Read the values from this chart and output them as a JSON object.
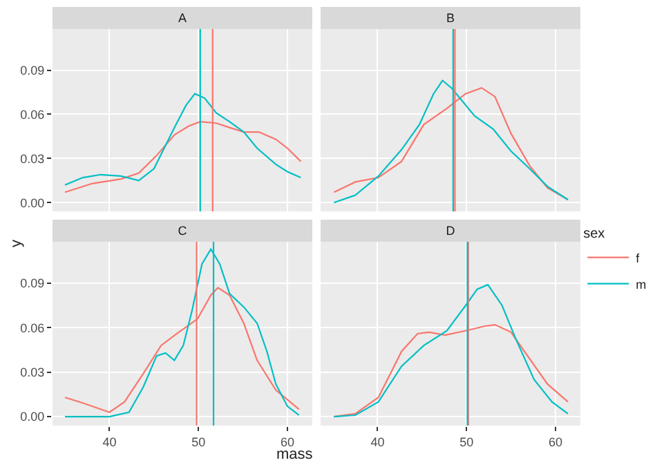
{
  "chart_data": [
    {
      "type": "line",
      "title": "A",
      "xlim": [
        33.6,
        62.8
      ],
      "ylim": [
        -0.006,
        0.118
      ],
      "xticks": [
        40,
        50,
        60
      ],
      "yticks": [
        {
          "value": 0,
          "label": "0.00"
        },
        0.03,
        0.06,
        0.09
      ],
      "grid": true,
      "tick_labels": "y",
      "series": [
        {
          "color": "#f8766d",
          "x": [
            35,
            38.1,
            41.3,
            43.3,
            45.3,
            47.3,
            48.9,
            50.2,
            52,
            53.5,
            55.1,
            56.8,
            58.7,
            60,
            61.5
          ],
          "values": [
            0.007,
            0.013,
            0.016,
            0.02,
            0.032,
            0.046,
            0.052,
            0.055,
            0.054,
            0.051,
            0.048,
            0.048,
            0.043,
            0.037,
            0.028
          ]
        },
        {
          "color": "#00bfc4",
          "x": [
            35,
            37,
            39,
            41.3,
            43.3,
            45,
            47.3,
            48.6,
            49.6,
            50.7,
            52,
            53.5,
            55.1,
            56.6,
            58.7,
            60,
            61.5
          ],
          "values": [
            0.012,
            0.017,
            0.019,
            0.018,
            0.015,
            0.023,
            0.051,
            0.066,
            0.074,
            0.071,
            0.061,
            0.055,
            0.048,
            0.037,
            0.026,
            0.021,
            0.017
          ]
        }
      ],
      "ref_lines": [
        {
          "axis": "x",
          "value": 51.6,
          "color": "#f8766d"
        },
        {
          "axis": "x",
          "value": 50.2,
          "color": "#00bfc4"
        }
      ]
    },
    {
      "type": "line",
      "title": "B",
      "xlim": [
        33.6,
        62.8
      ],
      "ylim": [
        -0.006,
        0.118
      ],
      "xticks": [
        40,
        50,
        60
      ],
      "yticks": [
        0,
        0.03,
        0.06,
        0.09
      ],
      "grid": true,
      "tick_labels": false,
      "series": [
        {
          "color": "#f8766d",
          "x": [
            35.1,
            37.5,
            40.1,
            42.7,
            45.2,
            47.8,
            49.9,
            51.7,
            53.2,
            55,
            57.1,
            59.1,
            61.4
          ],
          "values": [
            0.007,
            0.014,
            0.017,
            0.028,
            0.053,
            0.064,
            0.074,
            0.078,
            0.072,
            0.047,
            0.025,
            0.01,
            0.002
          ]
        },
        {
          "color": "#00bfc4",
          "x": [
            35.1,
            37.5,
            40.1,
            42.7,
            44.7,
            46.3,
            47.3,
            48.3,
            49.4,
            50.9,
            53,
            55,
            57.1,
            59.1,
            61.4
          ],
          "values": [
            0,
            0.005,
            0.018,
            0.036,
            0.053,
            0.074,
            0.083,
            0.078,
            0.07,
            0.059,
            0.05,
            0.035,
            0.023,
            0.011,
            0.002
          ]
        }
      ],
      "ref_lines": [
        {
          "axis": "x",
          "value": 48.7,
          "color": "#f8766d"
        },
        {
          "axis": "x",
          "value": 48.5,
          "color": "#00bfc4"
        }
      ]
    },
    {
      "type": "line",
      "title": "C",
      "xlabel": "mass",
      "ylabel": "y",
      "xlim": [
        33.6,
        62.8
      ],
      "ylim": [
        -0.006,
        0.118
      ],
      "xticks": [
        40,
        50,
        60
      ],
      "yticks": [
        {
          "value": 0,
          "label": "0.00"
        },
        0.03,
        0.06,
        0.09
      ],
      "grid": true,
      "series": [
        {
          "color": "#f8766d",
          "x": [
            35,
            37.1,
            40,
            41.7,
            43.8,
            45.8,
            47.8,
            49.9,
            51.4,
            52.2,
            53.5,
            55.1,
            56.6,
            58.7,
            61.3
          ],
          "values": [
            0.013,
            0.009,
            0.003,
            0.01,
            0.029,
            0.048,
            0.057,
            0.066,
            0.082,
            0.087,
            0.082,
            0.063,
            0.038,
            0.018,
            0.005
          ]
        },
        {
          "color": "#00bfc4",
          "x": [
            35,
            40,
            42.2,
            43.8,
            45.3,
            46.3,
            47.3,
            48.3,
            49.3,
            50.4,
            51.4,
            52.4,
            53.5,
            55.1,
            56.6,
            57.7,
            58.7,
            60,
            61.3
          ],
          "values": [
            0,
            0,
            0.003,
            0.02,
            0.041,
            0.043,
            0.038,
            0.048,
            0.072,
            0.103,
            0.113,
            0.103,
            0.083,
            0.074,
            0.063,
            0.044,
            0.022,
            0.007,
            0.001
          ]
        }
      ],
      "ref_lines": [
        {
          "axis": "x",
          "value": 49.8,
          "color": "#f8766d"
        },
        {
          "axis": "x",
          "value": 51.7,
          "color": "#00bfc4"
        }
      ]
    },
    {
      "type": "line",
      "title": "D",
      "xlim": [
        33.6,
        62.8
      ],
      "ylim": [
        -0.006,
        0.118
      ],
      "xticks": [
        40,
        50,
        60
      ],
      "yticks": [
        0,
        0.03,
        0.06,
        0.09
      ],
      "grid": true,
      "tick_labels": "x",
      "legend": "right",
      "legend_title": "sex",
      "series": [
        {
          "name": "f",
          "color": "#f8766d",
          "x": [
            35.1,
            37.5,
            40.1,
            42.7,
            44.5,
            45.8,
            47.6,
            49.9,
            52,
            53.2,
            55,
            57.1,
            59.1,
            61.4
          ],
          "values": [
            0,
            0.002,
            0.013,
            0.044,
            0.056,
            0.057,
            0.055,
            0.058,
            0.061,
            0.062,
            0.057,
            0.039,
            0.022,
            0.01
          ]
        },
        {
          "name": "m",
          "color": "#00bfc4",
          "x": [
            35.1,
            37.5,
            40.1,
            42.7,
            45.2,
            47.8,
            49.9,
            51.2,
            52.4,
            54,
            55.5,
            57.6,
            59.6,
            61.4
          ],
          "values": [
            0,
            0.001,
            0.01,
            0.034,
            0.048,
            0.058,
            0.075,
            0.086,
            0.089,
            0.075,
            0.053,
            0.025,
            0.01,
            0.002
          ]
        }
      ],
      "ref_lines": [
        {
          "axis": "x",
          "value": 50.2,
          "color": "#f8766d"
        },
        {
          "axis": "x",
          "value": 50.1,
          "color": "#00bfc4"
        }
      ]
    }
  ]
}
